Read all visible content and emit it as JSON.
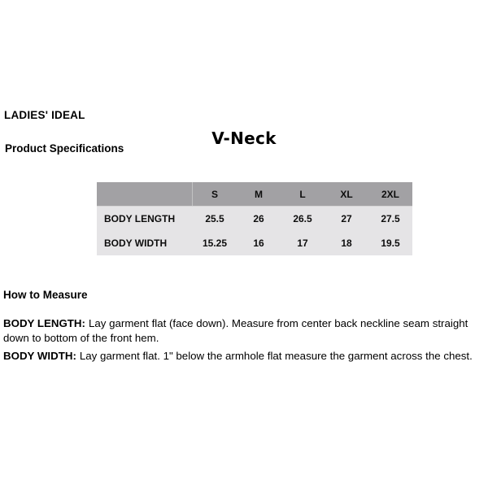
{
  "header": {
    "brand": "LADIES' IDEAL",
    "section": "Product Specifications",
    "product": "V-Neck"
  },
  "spec_table": {
    "columns": [
      "S",
      "M",
      "L",
      "XL",
      "2XL"
    ],
    "rows": [
      {
        "label": "BODY LENGTH",
        "values": [
          "25.5",
          "26",
          "26.5",
          "27",
          "27.5"
        ]
      },
      {
        "label": "BODY WIDTH",
        "values": [
          "15.25",
          "16",
          "17",
          "18",
          "19.5"
        ]
      }
    ]
  },
  "measure": {
    "heading": "How to Measure",
    "items": [
      {
        "term": "BODY LENGTH:",
        "text": "Lay garment flat (face down). Measure from center back neckline seam straight down to bottom of the front hem."
      },
      {
        "term": "BODY WIDTH:",
        "text": "Lay garment flat. 1\" below the armhole flat measure the garment across the chest."
      }
    ]
  },
  "colors": {
    "table_header_bg": "#a2a1a4",
    "table_body_bg": "#e5e4e6",
    "text": "#000000"
  }
}
